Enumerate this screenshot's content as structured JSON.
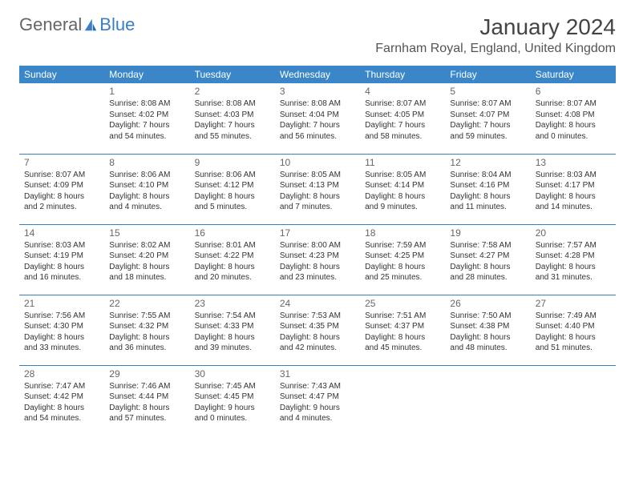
{
  "logo": {
    "text1": "General",
    "text2": "Blue"
  },
  "title": "January 2024",
  "location": "Farnham Royal, England, United Kingdom",
  "colors": {
    "header_bg": "#3a86c8",
    "header_fg": "#ffffff",
    "divider": "#3a7fc4",
    "text": "#333333",
    "logo_blue": "#3a7fc4",
    "logo_gray": "#666666"
  },
  "weekdays": [
    "Sunday",
    "Monday",
    "Tuesday",
    "Wednesday",
    "Thursday",
    "Friday",
    "Saturday"
  ],
  "weeks": [
    [
      null,
      {
        "d": "1",
        "sr": "Sunrise: 8:08 AM",
        "ss": "Sunset: 4:02 PM",
        "dl1": "Daylight: 7 hours",
        "dl2": "and 54 minutes."
      },
      {
        "d": "2",
        "sr": "Sunrise: 8:08 AM",
        "ss": "Sunset: 4:03 PM",
        "dl1": "Daylight: 7 hours",
        "dl2": "and 55 minutes."
      },
      {
        "d": "3",
        "sr": "Sunrise: 8:08 AM",
        "ss": "Sunset: 4:04 PM",
        "dl1": "Daylight: 7 hours",
        "dl2": "and 56 minutes."
      },
      {
        "d": "4",
        "sr": "Sunrise: 8:07 AM",
        "ss": "Sunset: 4:05 PM",
        "dl1": "Daylight: 7 hours",
        "dl2": "and 58 minutes."
      },
      {
        "d": "5",
        "sr": "Sunrise: 8:07 AM",
        "ss": "Sunset: 4:07 PM",
        "dl1": "Daylight: 7 hours",
        "dl2": "and 59 minutes."
      },
      {
        "d": "6",
        "sr": "Sunrise: 8:07 AM",
        "ss": "Sunset: 4:08 PM",
        "dl1": "Daylight: 8 hours",
        "dl2": "and 0 minutes."
      }
    ],
    [
      {
        "d": "7",
        "sr": "Sunrise: 8:07 AM",
        "ss": "Sunset: 4:09 PM",
        "dl1": "Daylight: 8 hours",
        "dl2": "and 2 minutes."
      },
      {
        "d": "8",
        "sr": "Sunrise: 8:06 AM",
        "ss": "Sunset: 4:10 PM",
        "dl1": "Daylight: 8 hours",
        "dl2": "and 4 minutes."
      },
      {
        "d": "9",
        "sr": "Sunrise: 8:06 AM",
        "ss": "Sunset: 4:12 PM",
        "dl1": "Daylight: 8 hours",
        "dl2": "and 5 minutes."
      },
      {
        "d": "10",
        "sr": "Sunrise: 8:05 AM",
        "ss": "Sunset: 4:13 PM",
        "dl1": "Daylight: 8 hours",
        "dl2": "and 7 minutes."
      },
      {
        "d": "11",
        "sr": "Sunrise: 8:05 AM",
        "ss": "Sunset: 4:14 PM",
        "dl1": "Daylight: 8 hours",
        "dl2": "and 9 minutes."
      },
      {
        "d": "12",
        "sr": "Sunrise: 8:04 AM",
        "ss": "Sunset: 4:16 PM",
        "dl1": "Daylight: 8 hours",
        "dl2": "and 11 minutes."
      },
      {
        "d": "13",
        "sr": "Sunrise: 8:03 AM",
        "ss": "Sunset: 4:17 PM",
        "dl1": "Daylight: 8 hours",
        "dl2": "and 14 minutes."
      }
    ],
    [
      {
        "d": "14",
        "sr": "Sunrise: 8:03 AM",
        "ss": "Sunset: 4:19 PM",
        "dl1": "Daylight: 8 hours",
        "dl2": "and 16 minutes."
      },
      {
        "d": "15",
        "sr": "Sunrise: 8:02 AM",
        "ss": "Sunset: 4:20 PM",
        "dl1": "Daylight: 8 hours",
        "dl2": "and 18 minutes."
      },
      {
        "d": "16",
        "sr": "Sunrise: 8:01 AM",
        "ss": "Sunset: 4:22 PM",
        "dl1": "Daylight: 8 hours",
        "dl2": "and 20 minutes."
      },
      {
        "d": "17",
        "sr": "Sunrise: 8:00 AM",
        "ss": "Sunset: 4:23 PM",
        "dl1": "Daylight: 8 hours",
        "dl2": "and 23 minutes."
      },
      {
        "d": "18",
        "sr": "Sunrise: 7:59 AM",
        "ss": "Sunset: 4:25 PM",
        "dl1": "Daylight: 8 hours",
        "dl2": "and 25 minutes."
      },
      {
        "d": "19",
        "sr": "Sunrise: 7:58 AM",
        "ss": "Sunset: 4:27 PM",
        "dl1": "Daylight: 8 hours",
        "dl2": "and 28 minutes."
      },
      {
        "d": "20",
        "sr": "Sunrise: 7:57 AM",
        "ss": "Sunset: 4:28 PM",
        "dl1": "Daylight: 8 hours",
        "dl2": "and 31 minutes."
      }
    ],
    [
      {
        "d": "21",
        "sr": "Sunrise: 7:56 AM",
        "ss": "Sunset: 4:30 PM",
        "dl1": "Daylight: 8 hours",
        "dl2": "and 33 minutes."
      },
      {
        "d": "22",
        "sr": "Sunrise: 7:55 AM",
        "ss": "Sunset: 4:32 PM",
        "dl1": "Daylight: 8 hours",
        "dl2": "and 36 minutes."
      },
      {
        "d": "23",
        "sr": "Sunrise: 7:54 AM",
        "ss": "Sunset: 4:33 PM",
        "dl1": "Daylight: 8 hours",
        "dl2": "and 39 minutes."
      },
      {
        "d": "24",
        "sr": "Sunrise: 7:53 AM",
        "ss": "Sunset: 4:35 PM",
        "dl1": "Daylight: 8 hours",
        "dl2": "and 42 minutes."
      },
      {
        "d": "25",
        "sr": "Sunrise: 7:51 AM",
        "ss": "Sunset: 4:37 PM",
        "dl1": "Daylight: 8 hours",
        "dl2": "and 45 minutes."
      },
      {
        "d": "26",
        "sr": "Sunrise: 7:50 AM",
        "ss": "Sunset: 4:38 PM",
        "dl1": "Daylight: 8 hours",
        "dl2": "and 48 minutes."
      },
      {
        "d": "27",
        "sr": "Sunrise: 7:49 AM",
        "ss": "Sunset: 4:40 PM",
        "dl1": "Daylight: 8 hours",
        "dl2": "and 51 minutes."
      }
    ],
    [
      {
        "d": "28",
        "sr": "Sunrise: 7:47 AM",
        "ss": "Sunset: 4:42 PM",
        "dl1": "Daylight: 8 hours",
        "dl2": "and 54 minutes."
      },
      {
        "d": "29",
        "sr": "Sunrise: 7:46 AM",
        "ss": "Sunset: 4:44 PM",
        "dl1": "Daylight: 8 hours",
        "dl2": "and 57 minutes."
      },
      {
        "d": "30",
        "sr": "Sunrise: 7:45 AM",
        "ss": "Sunset: 4:45 PM",
        "dl1": "Daylight: 9 hours",
        "dl2": "and 0 minutes."
      },
      {
        "d": "31",
        "sr": "Sunrise: 7:43 AM",
        "ss": "Sunset: 4:47 PM",
        "dl1": "Daylight: 9 hours",
        "dl2": "and 4 minutes."
      },
      null,
      null,
      null
    ]
  ]
}
